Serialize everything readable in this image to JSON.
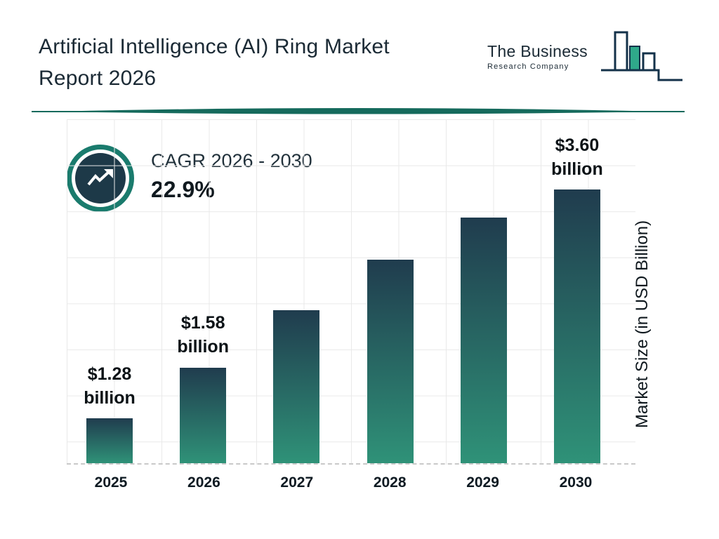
{
  "header": {
    "title_line1": "Artificial Intelligence (AI) Ring Market",
    "title_line2": "Report 2026",
    "logo_line1": "The Business",
    "logo_line2": "Research Company"
  },
  "cagr": {
    "label": "CAGR 2026 - 2030",
    "value": "22.9%"
  },
  "chart_data": {
    "type": "bar",
    "title": "Artificial Intelligence (AI) Ring Market Report 2026",
    "categories": [
      "2025",
      "2026",
      "2027",
      "2028",
      "2029",
      "2030"
    ],
    "values": [
      1.28,
      1.58,
      1.94,
      2.39,
      2.93,
      3.6
    ],
    "unit": "USD Billion",
    "ylabel": "Market Size (in USD Billion)",
    "xlabel": "",
    "value_labels": [
      [
        "$1.28",
        "billion"
      ],
      [
        "$1.58",
        "billion"
      ],
      null,
      null,
      null,
      [
        "$3.60",
        "billion"
      ]
    ],
    "annotation": "CAGR 2026 - 2030: 22.9%",
    "grid": true,
    "legend": false,
    "display_heights_pct": [
      13,
      27.8,
      44.5,
      59.2,
      71.5,
      79.5
    ],
    "colors": {
      "bar_top": "#203c4e",
      "bar_bottom": "#2f9278",
      "accent_teal": "#156a5c",
      "ring_teal": "#1a7b6d",
      "badge_navy": "#1d3948",
      "logo_navy": "#14324a",
      "logo_green": "#2fa98a"
    }
  }
}
